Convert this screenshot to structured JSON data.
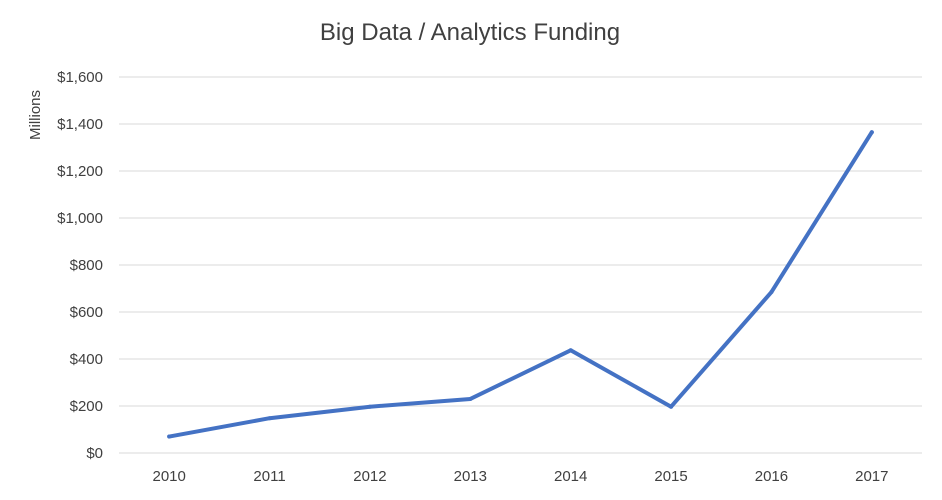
{
  "chart_data": {
    "type": "line",
    "title": "Big Data / Analytics Funding",
    "xlabel": "",
    "ylabel": "Millions",
    "categories": [
      "2010",
      "2011",
      "2012",
      "2013",
      "2014",
      "2015",
      "2016",
      "2017"
    ],
    "values": [
      70,
      148,
      197,
      230,
      437,
      197,
      685,
      1365
    ],
    "ylim": [
      0,
      1600
    ],
    "y_ticks": [
      0,
      200,
      400,
      600,
      800,
      1000,
      1200,
      1400,
      1600
    ],
    "y_tick_labels": [
      "$0",
      "$200",
      "$400",
      "$600",
      "$800",
      "$1,000",
      "$1,200",
      "$1,400",
      "$1,600"
    ],
    "grid": true,
    "legend": "none",
    "series_color": "#4472C4",
    "grid_color": "#D9D9D9"
  }
}
